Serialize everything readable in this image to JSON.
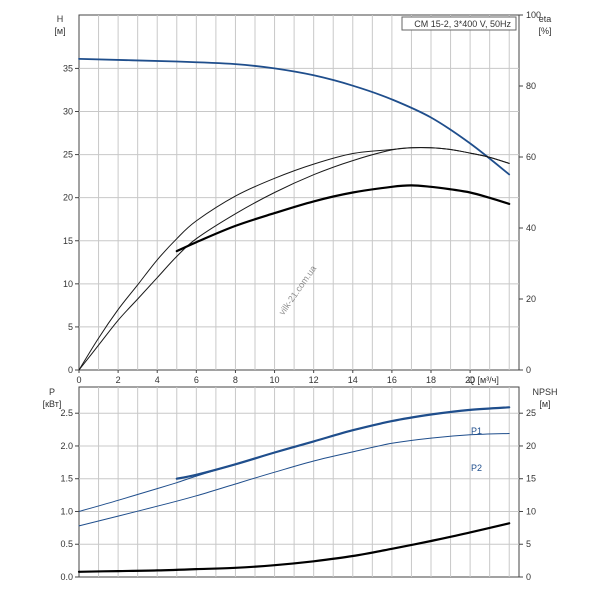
{
  "chart_data": [
    {
      "type": "line",
      "panel": "top",
      "legend": "CM 15-2, 3*400 V, 50Hz",
      "left_axis": {
        "title": "H",
        "unit": "[м]",
        "ylim": [
          0,
          41.2
        ],
        "ticks": [
          0,
          5,
          10,
          15,
          20,
          25,
          30,
          35
        ]
      },
      "right_axis": {
        "title": "eta",
        "unit": "[%]",
        "ylim": [
          0,
          100
        ],
        "ticks": [
          0,
          20,
          40,
          60,
          80,
          100
        ]
      },
      "x_axis": {
        "title": "Q [м³/ч]",
        "xlim": [
          0,
          22.5
        ],
        "ticks": [
          0,
          2,
          4,
          6,
          8,
          10,
          12,
          14,
          16,
          18,
          20
        ]
      },
      "grid": true,
      "series": [
        {
          "axis": "left",
          "color": "#1f4e8c",
          "width": 1.8,
          "x": [
            0,
            5,
            8,
            10,
            12,
            14,
            16,
            18,
            20,
            22
          ],
          "y": [
            36.1,
            35.8,
            35.5,
            35.0,
            34.2,
            33.0,
            31.4,
            29.3,
            26.3,
            22.7
          ]
        },
        {
          "axis": "right",
          "color": "#1a1a1a",
          "width": 1.0,
          "x": [
            0,
            1,
            2,
            3,
            4,
            5,
            6,
            8,
            10,
            12,
            14,
            16,
            17,
            18,
            19,
            20,
            21,
            22
          ],
          "y": [
            0,
            7,
            14,
            20,
            26,
            32,
            37,
            44,
            50,
            55,
            59,
            62,
            62.6,
            62.6,
            62.1,
            61.1,
            59.9,
            58.2
          ]
        },
        {
          "axis": "right",
          "color": "#1a1a1a",
          "width": 1.0,
          "x": [
            0,
            1,
            2,
            3,
            4,
            5,
            6,
            8,
            10,
            12,
            14,
            16,
            17,
            18,
            19,
            20,
            21,
            22
          ],
          "y": [
            0,
            9,
            17,
            24,
            31,
            37,
            42,
            49,
            54,
            58,
            61,
            62.1,
            62.6,
            62.6,
            62.1,
            61.1,
            59.9,
            58.2
          ]
        },
        {
          "axis": "right",
          "color": "#000000",
          "width": 2.2,
          "x": [
            5,
            6,
            8,
            10,
            12,
            14,
            16,
            17,
            18,
            19,
            20,
            21,
            22
          ],
          "y": [
            33.5,
            36,
            40.6,
            44.2,
            47.5,
            50,
            51.6,
            52,
            51.6,
            50.9,
            50,
            48.5,
            46.8
          ]
        }
      ]
    },
    {
      "type": "line",
      "panel": "bottom",
      "left_axis": {
        "title": "P",
        "unit": "[кВт]",
        "ylim": [
          0,
          2.9
        ],
        "ticks": [
          "0.0",
          "0.5",
          "1.0",
          "1.5",
          "2.0",
          "2.5"
        ]
      },
      "right_axis": {
        "title": "NPSH",
        "unit": "[м]",
        "ylim": [
          0,
          29
        ],
        "ticks": [
          0,
          5,
          10,
          15,
          20,
          25
        ]
      },
      "x_axis": {
        "xlim": [
          0,
          22.5
        ]
      },
      "grid": true,
      "series": [
        {
          "axis": "left",
          "name": "P1",
          "color": "#1f4e8c",
          "width": 1.0,
          "x": [
            0,
            2,
            4,
            5,
            6,
            8,
            10,
            12,
            14,
            16,
            18,
            20,
            22
          ],
          "y": [
            1.0,
            1.17,
            1.35,
            1.44,
            1.54,
            1.72,
            1.9,
            2.07,
            2.24,
            2.38,
            2.48,
            2.55,
            2.59
          ]
        },
        {
          "axis": "left",
          "color": "#1f4e8c",
          "width": 2.2,
          "x": [
            5,
            6,
            8,
            10,
            12,
            14,
            16,
            18,
            20,
            22
          ],
          "y": [
            1.5,
            1.56,
            1.72,
            1.9,
            2.07,
            2.24,
            2.38,
            2.48,
            2.55,
            2.59
          ]
        },
        {
          "axis": "left",
          "name": "P2",
          "color": "#1f4e8c",
          "width": 1.0,
          "x": [
            0,
            2,
            4,
            6,
            8,
            10,
            12,
            14,
            16,
            18,
            20,
            22
          ],
          "y": [
            0.78,
            0.93,
            1.08,
            1.24,
            1.42,
            1.6,
            1.77,
            1.91,
            2.04,
            2.12,
            2.17,
            2.19
          ]
        },
        {
          "axis": "right",
          "color": "#000000",
          "width": 2.2,
          "x": [
            0,
            2,
            4,
            6,
            8,
            10,
            12,
            14,
            16,
            18,
            20,
            22
          ],
          "y": [
            0.8,
            0.9,
            1.0,
            1.2,
            1.4,
            1.8,
            2.4,
            3.2,
            4.3,
            5.5,
            6.8,
            8.2
          ]
        }
      ]
    }
  ],
  "watermark": "vilk-21.com.ua"
}
